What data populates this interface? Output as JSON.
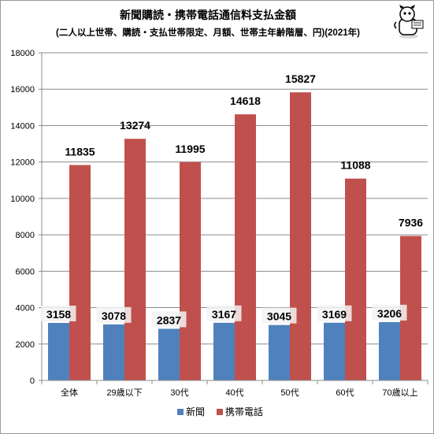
{
  "chart_data": {
    "type": "bar",
    "title": "新聞購読・携帯電話通信料支払金額",
    "subtitle": "(二人以上世帯、購読・支払世帯限定、月額、世帯主年齢階層、円)(2021年)",
    "categories": [
      "全体",
      "29歳以下",
      "30代",
      "40代",
      "50代",
      "60代",
      "70歳以上"
    ],
    "series": [
      {
        "name": "新聞",
        "color": "#4f81bd",
        "values": [
          3158,
          3078,
          2837,
          3167,
          3045,
          3169,
          3206
        ]
      },
      {
        "name": "携帯電話",
        "color": "#c0504d",
        "values": [
          11835,
          13274,
          11995,
          14618,
          15827,
          11088,
          7936
        ]
      }
    ],
    "ylim": [
      0,
      18000
    ],
    "yticks": [
      0,
      2000,
      4000,
      6000,
      8000,
      10000,
      12000,
      14000,
      16000,
      18000
    ],
    "grid": true,
    "legend": "bottom",
    "xlabel": "",
    "ylabel": ""
  }
}
